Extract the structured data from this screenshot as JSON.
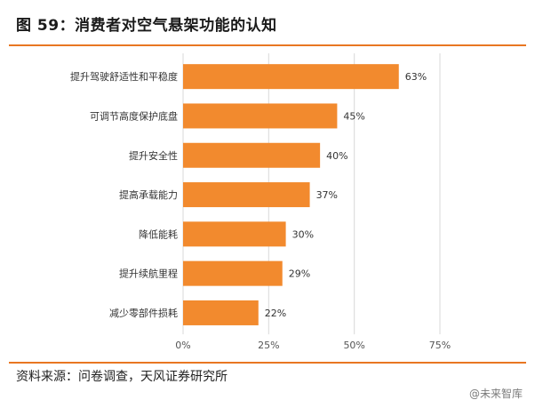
{
  "header": {
    "title": "图 59：消费者对空气悬架功能的认知"
  },
  "chart_data": {
    "type": "bar",
    "orientation": "horizontal",
    "title": "",
    "xlabel": "",
    "ylabel": "",
    "categories": [
      "提升驾驶舒适性和平稳度",
      "可调节高度保护底盘",
      "提升安全性",
      "提高承载能力",
      "降低能耗",
      "提升续航里程",
      "减少零部件损耗"
    ],
    "values": [
      63,
      45,
      40,
      37,
      30,
      29,
      22
    ],
    "value_labels": [
      "63%",
      "45%",
      "40%",
      "37%",
      "30%",
      "29%",
      "22%"
    ],
    "xlim": [
      0,
      75
    ],
    "xticks": [
      0,
      25,
      50,
      75
    ],
    "xtick_labels": [
      "0%",
      "25%",
      "50%",
      "75%"
    ],
    "grid": true,
    "bar_color": "#f28a2e"
  },
  "footer": {
    "source": "资料来源：问卷调查，天风证券研究所",
    "watermark": "@未来智库"
  }
}
